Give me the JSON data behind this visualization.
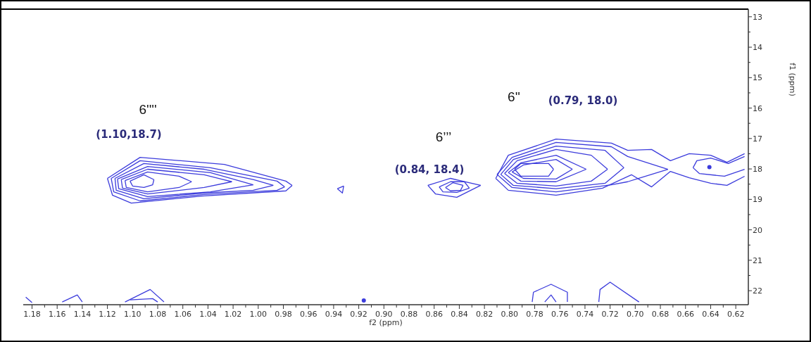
{
  "chart_data": {
    "type": "line",
    "xlabel": "f2 (ppm)",
    "ylabel": "f1 (ppm)",
    "xlim": [
      1.187,
      0.61
    ],
    "ylim": [
      22.46,
      12.75
    ],
    "xticks": [
      1.18,
      {
        "value": 1.17,
        "label": null
      },
      1.16,
      {
        "value": 1.15,
        "label": null
      },
      1.14,
      {
        "value": 1.13,
        "label": null
      },
      1.12,
      {
        "value": 1.11,
        "label": null
      },
      {
        "value": 1.1,
        "label": "1.10"
      },
      {
        "value": 1.09,
        "label": null
      },
      1.08,
      {
        "value": 1.07,
        "label": null
      },
      1.06,
      {
        "value": 1.05,
        "label": null
      },
      1.04,
      {
        "value": 1.03,
        "label": null
      },
      1.02,
      {
        "value": 1.01,
        "label": null
      },
      {
        "value": 1.0,
        "label": "1.00"
      },
      {
        "value": 0.99,
        "label": null
      },
      0.98,
      {
        "value": 0.97,
        "label": null
      },
      0.96,
      {
        "value": 0.95,
        "label": null
      },
      0.94,
      {
        "value": 0.93,
        "label": null
      },
      0.92,
      {
        "value": 0.91,
        "label": null
      },
      {
        "value": 0.9,
        "label": "0.90"
      },
      {
        "value": 0.89,
        "label": null
      },
      0.88,
      {
        "value": 0.87,
        "label": null
      },
      0.86,
      {
        "value": 0.85,
        "label": null
      },
      0.84,
      {
        "value": 0.83,
        "label": null
      },
      0.82,
      {
        "value": 0.81,
        "label": null
      },
      {
        "value": 0.8,
        "label": "0.80"
      },
      {
        "value": 0.79,
        "label": null
      },
      0.78,
      {
        "value": 0.77,
        "label": null
      },
      0.76,
      {
        "value": 0.75,
        "label": null
      },
      0.74,
      {
        "value": 0.73,
        "label": null
      },
      0.72,
      {
        "value": 0.71,
        "label": null
      },
      {
        "value": 0.7,
        "label": "0.70"
      },
      {
        "value": 0.69,
        "label": null
      },
      0.68,
      {
        "value": 0.67,
        "label": null
      },
      0.66,
      {
        "value": 0.65,
        "label": null
      },
      0.64,
      {
        "value": 0.63,
        "label": null
      },
      0.62
    ],
    "yticks": [
      13,
      {
        "value": 13.5,
        "label": null
      },
      14,
      {
        "value": 14.5,
        "label": null
      },
      15,
      {
        "value": 15.5,
        "label": null
      },
      16,
      {
        "value": 16.5,
        "label": null
      },
      17,
      {
        "value": 17.5,
        "label": null
      },
      18,
      {
        "value": 18.5,
        "label": null
      },
      19,
      {
        "value": 19.5,
        "label": null
      },
      20,
      {
        "value": 20.5,
        "label": null
      },
      21,
      {
        "value": 21.5,
        "label": null
      },
      22
    ],
    "grid": false,
    "line_style": "solid",
    "annotations": [
      "6''''",
      "(1.10,18.7)",
      "6’’’",
      "(0.84, 18.4)",
      "6''",
      "(0.79, 18.0)"
    ],
    "series": [
      {
        "color": "#3c3cdc",
        "x": [
          1.12,
          1.094,
          1.027,
          0.978,
          0.973
        ],
        "values": [
          18.31,
          17.62,
          17.85,
          18.4,
          18.54
        ]
      },
      {
        "color": "#3c3cdc",
        "x": [
          1.12,
          1.116,
          1.101,
          1.045,
          0.978,
          0.973
        ],
        "values": [
          18.31,
          18.86,
          19.12,
          18.89,
          18.72,
          18.54
        ]
      },
      {
        "color": "#3c3cdc",
        "x": [
          1.117,
          1.094,
          1.038,
          0.985,
          0.979
        ],
        "values": [
          18.31,
          17.73,
          17.96,
          18.4,
          18.59
        ]
      },
      {
        "color": "#3c3cdc",
        "x": [
          1.117,
          1.115,
          1.094,
          1.043,
          0.985,
          0.979
        ],
        "values": [
          18.31,
          18.75,
          19.05,
          18.84,
          18.7,
          18.59
        ]
      },
      {
        "color": "#3c3cdc",
        "x": [
          1.114,
          1.091,
          1.043,
          1.004,
          0.988
        ],
        "values": [
          18.31,
          17.82,
          18.01,
          18.35,
          18.54
        ]
      },
      {
        "color": "#3c3cdc",
        "x": [
          1.114,
          1.113,
          1.091,
          1.043,
          1.004,
          0.988
        ],
        "values": [
          18.31,
          18.7,
          18.98,
          18.79,
          18.7,
          18.54
        ]
      },
      {
        "color": "#3c3cdc",
        "x": [
          1.112,
          1.088,
          1.038,
          1.004
        ],
        "values": [
          18.33,
          17.92,
          18.12,
          18.52
        ]
      },
      {
        "color": "#3c3cdc",
        "x": [
          1.112,
          1.111,
          1.088,
          1.038,
          1.004
        ],
        "values": [
          18.33,
          18.65,
          18.91,
          18.75,
          18.52
        ]
      },
      {
        "color": "#3c3cdc",
        "x": [
          1.109,
          1.088,
          1.043,
          1.021
        ],
        "values": [
          18.35,
          18.01,
          18.19,
          18.42
        ]
      },
      {
        "color": "#3c3cdc",
        "x": [
          1.109,
          1.108,
          1.088,
          1.043,
          1.021
        ],
        "values": [
          18.35,
          18.63,
          18.82,
          18.61,
          18.42
        ]
      },
      {
        "color": "#3c3cdc",
        "x": [
          1.106,
          1.088,
          1.063,
          1.053
        ],
        "values": [
          18.38,
          18.1,
          18.24,
          18.42
        ]
      },
      {
        "color": "#3c3cdc",
        "x": [
          1.106,
          1.105,
          1.088,
          1.063,
          1.053
        ],
        "values": [
          18.38,
          18.61,
          18.75,
          18.61,
          18.42
        ]
      },
      {
        "color": "#3c3cdc",
        "x": [
          1.102,
          1.091,
          1.083
        ],
        "values": [
          18.4,
          18.19,
          18.35
        ]
      },
      {
        "color": "#3c3cdc",
        "x": [
          1.102,
          1.1,
          1.091,
          1.084,
          1.083
        ],
        "values": [
          18.4,
          18.56,
          18.61,
          18.52,
          18.35
        ]
      },
      {
        "color": "#3c3cdc",
        "x": [
          0.937,
          0.932
        ],
        "values": [
          18.65,
          18.56
        ]
      },
      {
        "color": "#3c3cdc",
        "x": [
          0.937,
          0.933,
          0.932
        ],
        "values": [
          18.65,
          18.79,
          18.56
        ]
      },
      {
        "color": "#3c3cdc",
        "x": [
          0.865,
          0.847,
          0.823
        ],
        "values": [
          18.54,
          18.31,
          18.54
        ]
      },
      {
        "color": "#3c3cdc",
        "x": [
          0.865,
          0.859,
          0.842,
          0.823
        ],
        "values": [
          18.54,
          18.82,
          18.93,
          18.54
        ]
      },
      {
        "color": "#3c3cdc",
        "x": [
          0.856,
          0.847,
          0.836,
          0.832
        ],
        "values": [
          18.59,
          18.42,
          18.42,
          18.63
        ]
      },
      {
        "color": "#3c3cdc",
        "x": [
          0.856,
          0.853,
          0.842,
          0.832
        ],
        "values": [
          18.59,
          18.75,
          18.77,
          18.63
        ]
      },
      {
        "color": "#3c3cdc",
        "x": [
          0.851,
          0.845,
          0.837
        ],
        "values": [
          18.61,
          18.45,
          18.54
        ]
      },
      {
        "color": "#3c3cdc",
        "x": [
          0.851,
          0.847,
          0.839,
          0.837
        ],
        "values": [
          18.61,
          18.72,
          18.7,
          18.54
        ]
      },
      {
        "color": "#3c3cdc",
        "x": [
          0.811,
          0.801,
          0.763,
          0.719,
          0.706,
          0.687,
          0.672,
          0.657,
          0.64,
          0.627,
          0.613
        ],
        "values": [
          18.31,
          17.55,
          17.02,
          17.15,
          17.39,
          17.36,
          17.73,
          17.5,
          17.55,
          17.78,
          17.5
        ]
      },
      {
        "color": "#3c3cdc",
        "x": [
          0.811,
          0.801,
          0.763,
          0.726,
          0.703,
          0.687,
          0.672,
          0.657,
          0.64,
          0.627,
          0.613
        ],
        "values": [
          18.31,
          18.7,
          18.86,
          18.63,
          18.19,
          18.59,
          18.08,
          18.29,
          18.47,
          18.54,
          18.24
        ]
      },
      {
        "color": "#3c3cdc",
        "x": [
          0.81,
          0.798,
          0.763,
          0.719,
          0.706,
          0.674
        ],
        "values": [
          18.18,
          17.62,
          17.13,
          17.27,
          17.59,
          18.01
        ]
      },
      {
        "color": "#3c3cdc",
        "x": [
          0.81,
          0.798,
          0.763,
          0.719,
          0.706,
          0.674
        ],
        "values": [
          18.18,
          18.61,
          18.75,
          18.52,
          18.42,
          18.01
        ]
      },
      {
        "color": "#3c3cdc",
        "x": [
          0.807,
          0.797,
          0.763,
          0.724,
          0.709
        ],
        "values": [
          18.18,
          17.69,
          17.25,
          17.39,
          17.96
        ]
      },
      {
        "color": "#3c3cdc",
        "x": [
          0.807,
          0.797,
          0.763,
          0.724,
          0.709
        ],
        "values": [
          18.18,
          18.54,
          18.65,
          18.47,
          17.96
        ]
      },
      {
        "color": "#3c3cdc",
        "x": [
          0.804,
          0.794,
          0.763,
          0.735,
          0.722
        ],
        "values": [
          18.15,
          17.73,
          17.36,
          17.55,
          18.01
        ]
      },
      {
        "color": "#3c3cdc",
        "x": [
          0.804,
          0.794,
          0.763,
          0.735,
          0.722
        ],
        "values": [
          18.15,
          18.47,
          18.56,
          18.4,
          18.01
        ]
      },
      {
        "color": "#3c3cdc",
        "x": [
          0.801,
          0.791,
          0.763,
          0.739
        ],
        "values": [
          18.12,
          17.8,
          17.55,
          18.01
        ]
      },
      {
        "color": "#3c3cdc",
        "x": [
          0.801,
          0.791,
          0.763,
          0.739
        ],
        "values": [
          18.12,
          18.4,
          18.42,
          18.01
        ]
      },
      {
        "color": "#3c3cdc",
        "x": [
          0.798,
          0.789,
          0.763,
          0.75
        ],
        "values": [
          18.1,
          17.87,
          17.69,
          18.01
        ]
      },
      {
        "color": "#3c3cdc",
        "x": [
          0.798,
          0.789,
          0.763,
          0.75
        ],
        "values": [
          18.1,
          18.31,
          18.33,
          18.01
        ]
      },
      {
        "color": "#3c3cdc",
        "x": [
          0.796,
          0.791,
          0.769,
          0.765
        ],
        "values": [
          18.01,
          17.82,
          17.82,
          18.01
        ]
      },
      {
        "color": "#3c3cdc",
        "x": [
          0.796,
          0.791,
          0.769,
          0.765
        ],
        "values": [
          18.01,
          18.24,
          18.24,
          18.01
        ]
      },
      {
        "color": "#3c3cdc",
        "x": [
          0.654,
          0.651,
          0.64,
          0.626,
          0.613
        ],
        "values": [
          17.96,
          17.73,
          17.64,
          17.82,
          17.59
        ]
      },
      {
        "color": "#3c3cdc",
        "x": [
          0.654,
          0.649,
          0.629,
          0.613
        ],
        "values": [
          17.96,
          18.15,
          18.24,
          18.01
        ]
      },
      {
        "color": "#3c3cdc",
        "x": [
          1.185,
          1.18
        ],
        "values": [
          22.21,
          22.39
        ]
      },
      {
        "color": "#3c3cdc",
        "x": [
          1.156,
          1.144,
          1.14
        ],
        "values": [
          22.37,
          22.14,
          22.37
        ]
      },
      {
        "color": "#3c3cdc",
        "x": [
          1.106,
          1.086,
          1.075
        ],
        "values": [
          22.37,
          21.96,
          22.37
        ]
      },
      {
        "color": "#3c3cdc",
        "x": [
          1.102,
          1.084,
          1.08
        ],
        "values": [
          22.3,
          22.26,
          22.37
        ]
      },
      {
        "color": "#3c3cdc",
        "x": [
          0.782,
          0.781,
          0.767,
          0.754,
          0.754
        ],
        "values": [
          22.37,
          22.05,
          21.79,
          22.05,
          22.37
        ]
      },
      {
        "color": "#3c3cdc",
        "x": [
          0.772,
          0.767,
          0.763
        ],
        "values": [
          22.37,
          22.14,
          22.37
        ]
      },
      {
        "color": "#3c3cdc",
        "x": [
          0.729,
          0.728,
          0.72,
          0.697
        ],
        "values": [
          22.37,
          21.96,
          21.72,
          22.37
        ]
      },
      {
        "type": "scatter",
        "color": "#3c3cdc",
        "x": [
          0.641,
          0.916
        ],
        "values": [
          17.94,
          22.32
        ]
      }
    ]
  }
}
